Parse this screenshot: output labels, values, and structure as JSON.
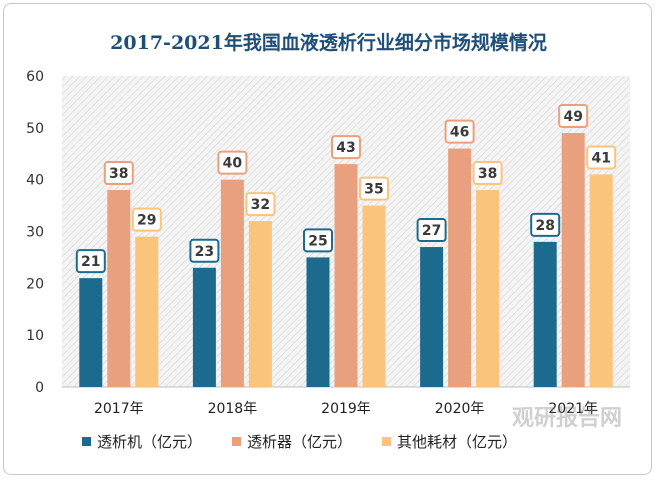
{
  "chart_data": {
    "type": "bar",
    "title": "2017-2021年我国血液透析行业细分市场规模情况",
    "categories": [
      "2017年",
      "2018年",
      "2019年",
      "2020年",
      "2021年"
    ],
    "series": [
      {
        "name": "透析机（亿元）",
        "values": [
          21,
          23,
          25,
          27,
          28
        ],
        "color": "#1c6b8e"
      },
      {
        "name": "透析器（亿元）",
        "values": [
          38,
          40,
          43,
          46,
          49
        ],
        "color": "#e8a07e"
      },
      {
        "name": "其他耗材（亿元）",
        "values": [
          29,
          32,
          35,
          38,
          41
        ],
        "color": "#fbc47b"
      }
    ],
    "ylim": [
      0,
      60
    ],
    "yticks": [
      0,
      10,
      20,
      30,
      40,
      50,
      60
    ],
    "xlabel": "",
    "ylabel": "",
    "grid": false,
    "legend_position": "bottom",
    "plot_background": "hatched-gray"
  },
  "watermark": "观研报告网"
}
